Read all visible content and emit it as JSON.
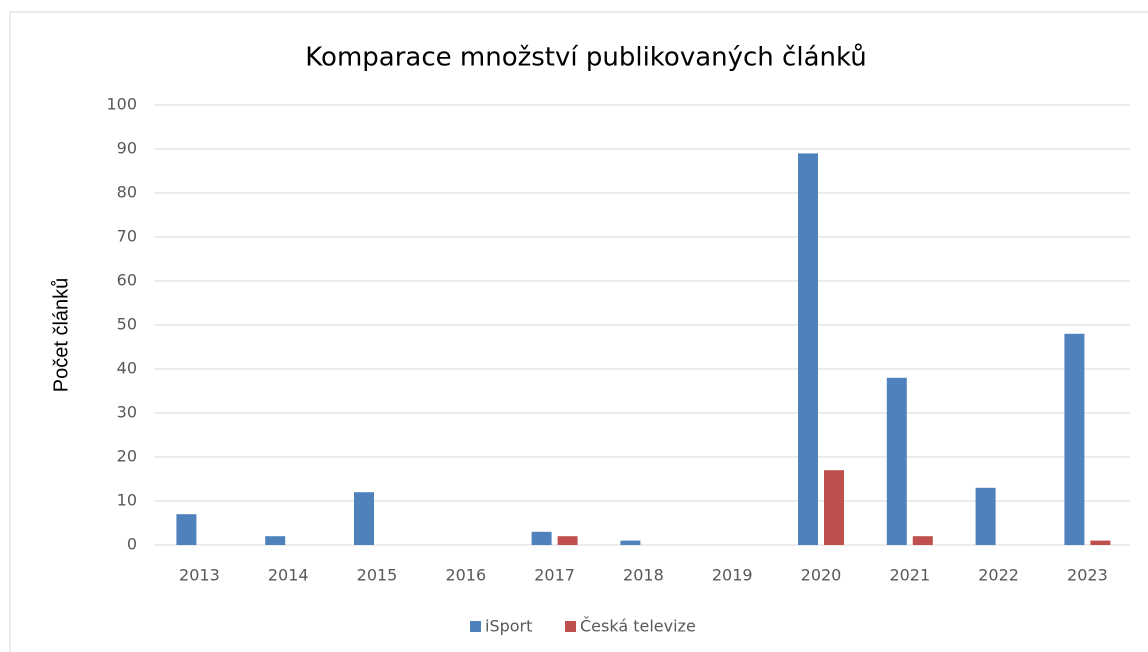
{
  "chart_data": {
    "type": "bar",
    "title": "Komparace množství publikovaných článků",
    "y_label": "Počet článků",
    "categories": [
      "2013",
      "2014",
      "2015",
      "2016",
      "2017",
      "2018",
      "2019",
      "2020",
      "2021",
      "2022",
      "2023"
    ],
    "series": [
      {
        "name": "iSport",
        "color": "#4f81bd",
        "values": [
          7,
          2,
          12,
          0,
          3,
          1,
          0,
          89,
          38,
          13,
          48
        ]
      },
      {
        "name": "Česká televize",
        "color": "#c0504d",
        "values": [
          0,
          0,
          0,
          0,
          2,
          0,
          0,
          17,
          2,
          0,
          1
        ]
      }
    ],
    "ylim": [
      0,
      100
    ],
    "yticks": [
      0,
      10,
      20,
      30,
      40,
      50,
      60,
      70,
      80,
      90,
      100
    ],
    "grid": true,
    "legend": "bottom"
  }
}
